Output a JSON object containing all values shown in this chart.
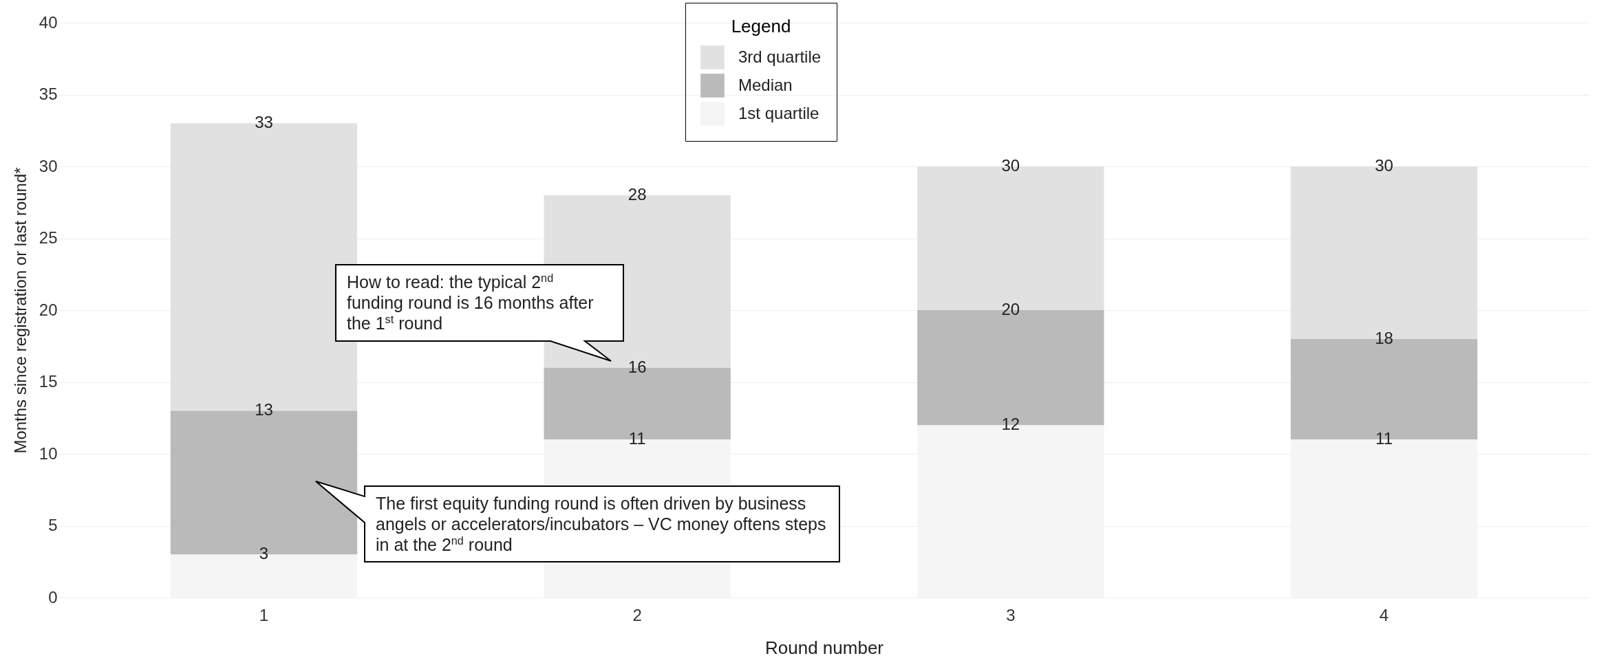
{
  "chart_data": {
    "type": "bar",
    "stacked": true,
    "categories": [
      "1",
      "2",
      "3",
      "4"
    ],
    "series": [
      {
        "name": "1st quartile",
        "color": "#f5f5f5",
        "values": [
          3,
          11,
          12,
          11
        ]
      },
      {
        "name": "Median",
        "color": "#bababa",
        "values": [
          10,
          5,
          8,
          7
        ]
      },
      {
        "name": "3rd quartile",
        "color": "#e1e1e1",
        "values": [
          20,
          12,
          10,
          12
        ]
      }
    ],
    "xlabel": "Round number",
    "ylabel": "Months since registration or last round*",
    "legend_title": "Legend",
    "legend": "top",
    "ylim": [
      0,
      40
    ],
    "yticks": [
      0,
      5,
      10,
      15,
      20,
      25,
      30,
      35,
      40
    ],
    "grid": "y",
    "annotations": [
      {
        "text": "3",
        "x": "1",
        "y": 3
      },
      {
        "text": "13",
        "x": "1",
        "y": 13
      },
      {
        "text": "33",
        "x": "1",
        "y": 33
      },
      {
        "text": "11",
        "x": "2",
        "y": 11
      },
      {
        "text": "16",
        "x": "2",
        "y": 16
      },
      {
        "text": "28",
        "x": "2",
        "y": 28
      },
      {
        "text": "12",
        "x": "3",
        "y": 12
      },
      {
        "text": "20",
        "x": "3",
        "y": 20
      },
      {
        "text": "30",
        "x": "3",
        "y": 30
      },
      {
        "text": "11",
        "x": "4",
        "y": 11
      },
      {
        "text": "18",
        "x": "4",
        "y": 18
      },
      {
        "text": "30",
        "x": "4",
        "y": 30
      },
      "How to read: the typical 2$^{nd}$ funding round is 16 months after the 1$^{st}$ round",
      "The first equity funding round is often driven by business angels or accelerators/incubators – VC money oftens steps in at the 2$^{nd}$ round"
    ]
  }
}
